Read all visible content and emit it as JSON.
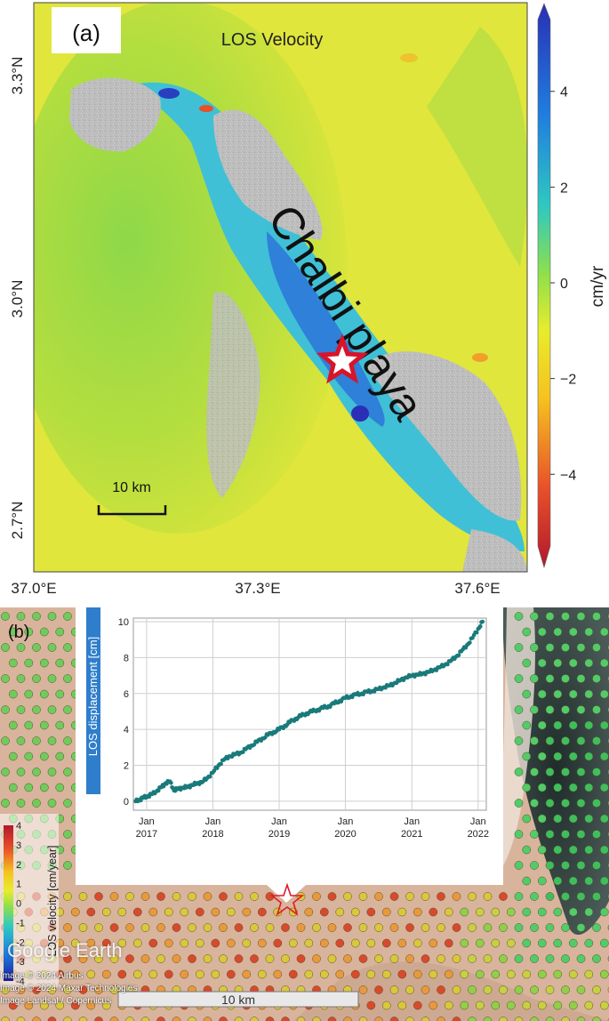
{
  "panel_a": {
    "label": "(a)",
    "title": "LOS Velocity",
    "place_label": "Chalbi playa",
    "scale_bar_label": "10 km",
    "lat_ticks": [
      "3.3°N",
      "3.0°N",
      "2.7°N"
    ],
    "lon_ticks": [
      "37.0°E",
      "37.3°E",
      "37.6°E"
    ],
    "colorbar": {
      "unit": "cm/yr",
      "ticks": [
        "4",
        "2",
        "0",
        "−2",
        "−4"
      ],
      "range": [
        -5.5,
        5.5
      ],
      "colors": [
        "#b2182b",
        "#e8502a",
        "#f6c21f",
        "#e8ec2c",
        "#8fe04a",
        "#2fc9c0",
        "#1f7fe0",
        "#2a2fb5"
      ]
    },
    "colors": {
      "land_yellow": "#dfe63a",
      "land_green": "#9ed945",
      "playa_gray": "#b9b9b9",
      "uplift_cyan": "#3fc0d6",
      "star": "#d8142a"
    }
  },
  "panel_b": {
    "label": "(b)",
    "colorbar_label": "LOS velocity [cm/year]",
    "colorbar_ticks": [
      "4",
      "3",
      "2",
      "1",
      "0",
      "-1",
      "-2",
      "-3",
      "-4"
    ],
    "watermark": "Google Earth",
    "credits": [
      "Image © 2024 Airbus",
      "Image © 2024 Maxar Technologies",
      "Image Landsat / Copernicus"
    ],
    "scale_bar_label": "10 km",
    "colors": {
      "terrain": "#d9b49c",
      "dark_terrain": "#2a3a38",
      "dot_green": "#55cc66",
      "dot_orange": "#e89a3a",
      "dot_red": "#d84a2a"
    }
  },
  "chart_data": {
    "type": "scatter",
    "ylabel": "LOS displacement [cm]",
    "xlabel": "",
    "x_ticks": [
      {
        "month": "Jan",
        "year": "2017"
      },
      {
        "month": "Jan",
        "year": "2018"
      },
      {
        "month": "Jan",
        "year": "2019"
      },
      {
        "month": "Jan",
        "year": "2020"
      },
      {
        "month": "Jan",
        "year": "2021"
      },
      {
        "month": "Jan",
        "year": "2022"
      }
    ],
    "y_ticks": [
      "0",
      "2",
      "4",
      "6",
      "8",
      "10"
    ],
    "ylim": [
      -0.5,
      10.2
    ],
    "xlim": [
      "2016-10-20",
      "2022-02-15"
    ],
    "grid": true,
    "marker_color": "#1a7a7a",
    "series": [
      {
        "points": [
          [
            "2016-11-01",
            0.0
          ],
          [
            "2016-11-25",
            0.1
          ],
          [
            "2016-12-15",
            0.2
          ],
          [
            "2017-01-10",
            0.3
          ],
          [
            "2017-02-01",
            0.4
          ],
          [
            "2017-03-01",
            0.6
          ],
          [
            "2017-03-25",
            0.8
          ],
          [
            "2017-04-15",
            1.0
          ],
          [
            "2017-05-10",
            1.1
          ],
          [
            "2017-06-01",
            0.6
          ],
          [
            "2017-06-25",
            0.7
          ],
          [
            "2017-07-20",
            0.75
          ],
          [
            "2017-08-15",
            0.8
          ],
          [
            "2017-09-10",
            0.9
          ],
          [
            "2017-10-05",
            1.0
          ],
          [
            "2017-11-01",
            1.05
          ],
          [
            "2017-12-01",
            1.3
          ],
          [
            "2018-01-01",
            1.6
          ],
          [
            "2018-02-01",
            2.0
          ],
          [
            "2018-03-01",
            2.3
          ],
          [
            "2018-04-01",
            2.5
          ],
          [
            "2018-05-01",
            2.6
          ],
          [
            "2018-06-01",
            2.7
          ],
          [
            "2018-07-01",
            2.9
          ],
          [
            "2018-08-01",
            3.1
          ],
          [
            "2018-09-01",
            3.3
          ],
          [
            "2018-10-01",
            3.5
          ],
          [
            "2018-11-01",
            3.7
          ],
          [
            "2018-12-01",
            3.85
          ],
          [
            "2019-01-01",
            4.0
          ],
          [
            "2019-02-01",
            4.2
          ],
          [
            "2019-03-01",
            4.4
          ],
          [
            "2019-04-01",
            4.6
          ],
          [
            "2019-05-01",
            4.75
          ],
          [
            "2019-06-01",
            4.9
          ],
          [
            "2019-07-01",
            5.0
          ],
          [
            "2019-08-01",
            5.1
          ],
          [
            "2019-09-01",
            5.2
          ],
          [
            "2019-10-01",
            5.3
          ],
          [
            "2019-11-01",
            5.45
          ],
          [
            "2019-12-01",
            5.6
          ],
          [
            "2020-01-01",
            5.75
          ],
          [
            "2020-02-01",
            5.85
          ],
          [
            "2020-03-01",
            5.95
          ],
          [
            "2020-04-01",
            6.0
          ],
          [
            "2020-05-01",
            6.1
          ],
          [
            "2020-06-01",
            6.15
          ],
          [
            "2020-07-01",
            6.25
          ],
          [
            "2020-08-01",
            6.35
          ],
          [
            "2020-09-01",
            6.45
          ],
          [
            "2020-10-01",
            6.6
          ],
          [
            "2020-11-01",
            6.75
          ],
          [
            "2020-12-01",
            6.9
          ],
          [
            "2021-01-01",
            7.0
          ],
          [
            "2021-02-01",
            7.05
          ],
          [
            "2021-03-01",
            7.1
          ],
          [
            "2021-04-01",
            7.2
          ],
          [
            "2021-05-01",
            7.3
          ],
          [
            "2021-06-01",
            7.45
          ],
          [
            "2021-07-01",
            7.6
          ],
          [
            "2021-08-01",
            7.8
          ],
          [
            "2021-09-01",
            8.05
          ],
          [
            "2021-10-01",
            8.35
          ],
          [
            "2021-11-01",
            8.7
          ],
          [
            "2021-12-01",
            9.1
          ],
          [
            "2022-01-01",
            9.6
          ],
          [
            "2022-01-25",
            10.0
          ]
        ]
      }
    ]
  }
}
